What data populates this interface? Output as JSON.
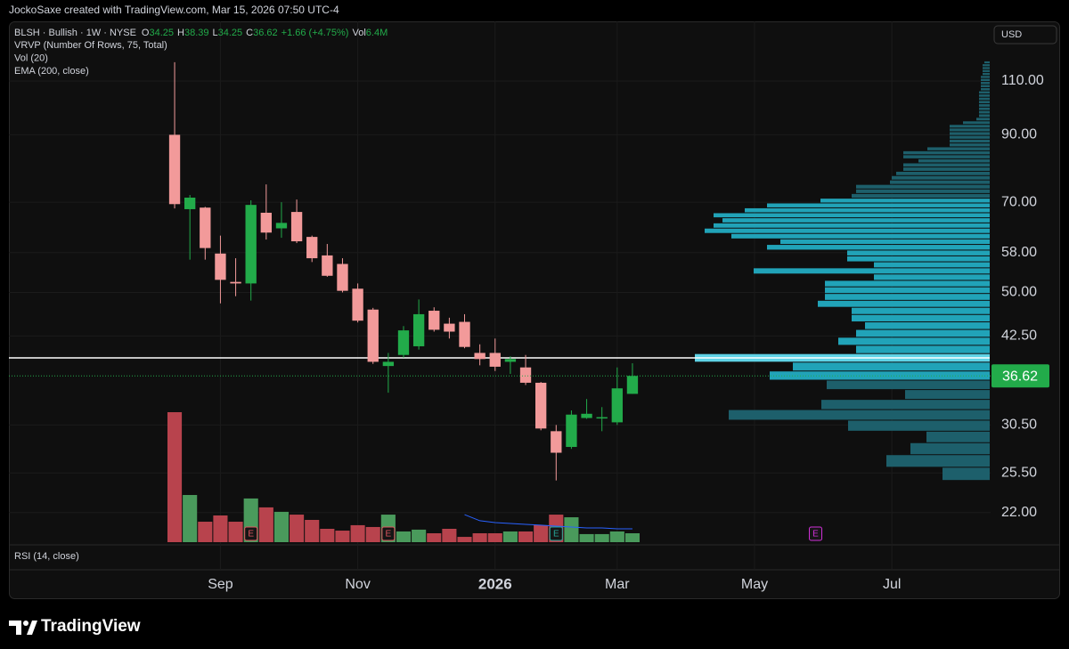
{
  "header": {
    "attribution": "JockoSaxe created with TradingView.com, Mar 15, 2026 07:50 UTC-4"
  },
  "chart_data": {
    "type": "candlestick",
    "symbol_line": "BLSH · Bullish · 1W · NYSE",
    "ohlc_legend": [
      {
        "key": "O",
        "value": 34.25
      },
      {
        "key": "H",
        "value": 38.39
      },
      {
        "key": "L",
        "value": 34.25
      },
      {
        "key": "C",
        "value": 36.62
      },
      {
        "value": "+1.66 (+4.75%)"
      },
      {
        "key": "Vol",
        "value": "6.4M"
      }
    ],
    "indicators": [
      "VRVP (Number Of Rows, 75, Total)",
      "Vol (20)",
      "EMA (200, close)"
    ],
    "rsi_label": "RSI (14, close)",
    "currency": "USD",
    "log_scale": true,
    "grid": true,
    "up_color": "#22ab4a",
    "down_color": "#f29a9a",
    "volume_up_color": "#4a9a5c",
    "volume_down_color": "#b8434d",
    "open": [
      90.0,
      68.2,
      68.6,
      57.8,
      52.0,
      51.7,
      67.3,
      63.5,
      67.5,
      61.5,
      57.4,
      55.6,
      50.7,
      46.9,
      38.0,
      39.6,
      40.9,
      46.7,
      44.5,
      44.8,
      39.9,
      39.9,
      38.6,
      37.8,
      35.7,
      29.8,
      28.1,
      31.3,
      31.3,
      30.8,
      34.25
    ],
    "high": [
      118.0,
      71.9,
      68.8,
      61.8,
      56.8,
      70.5,
      74.8,
      70.0,
      70.7,
      61.8,
      59.9,
      56.8,
      51.7,
      47.2,
      39.9,
      44.1,
      48.7,
      47.3,
      45.5,
      46.1,
      41.2,
      42.1,
      39.4,
      39.6,
      35.8,
      30.5,
      32.2,
      33.6,
      32.6,
      37.8,
      38.39
    ],
    "low": [
      68.4,
      56.5,
      56.5,
      48.0,
      49.3,
      48.5,
      60.9,
      61.3,
      60.1,
      56.0,
      53.0,
      50.0,
      44.7,
      38.3,
      34.4,
      39.2,
      40.4,
      43.2,
      42.1,
      40.6,
      38.1,
      37.3,
      36.9,
      35.4,
      29.9,
      24.8,
      27.9,
      31.2,
      29.8,
      30.5,
      34.25
    ],
    "close": [
      69.5,
      71.2,
      59.0,
      52.4,
      51.7,
      69.3,
      62.5,
      64.8,
      60.5,
      56.8,
      53.2,
      50.3,
      45.0,
      38.6,
      38.6,
      43.4,
      46.1,
      43.5,
      43.2,
      40.8,
      39.0,
      37.9,
      39.0,
      35.7,
      30.1,
      27.5,
      31.7,
      31.8,
      31.4,
      34.96,
      36.62
    ],
    "volume": [
      93.4,
      33.9,
      14.7,
      19.2,
      14.7,
      31.4,
      25.0,
      21.8,
      19.8,
      16.0,
      9.6,
      8.3,
      12.2,
      10.9,
      19.8,
      7.7,
      9.0,
      6.4,
      9.6,
      3.8,
      6.4,
      6.4,
      7.7,
      7.7,
      12.2,
      19.8,
      17.9,
      5.8,
      5.8,
      7.7,
      6.4
    ],
    "volume_ma": [
      null,
      null,
      null,
      null,
      null,
      null,
      null,
      null,
      null,
      null,
      null,
      null,
      null,
      null,
      null,
      null,
      null,
      null,
      null,
      19.8,
      15.4,
      14.1,
      13.4,
      12.8,
      12.2,
      11.5,
      10.9,
      10.2,
      10.2,
      9.6,
      9.6
    ],
    "volume_ma_color": "#2962ff",
    "ylim": [
      19.7,
      137.4
    ],
    "yticks": [
      {
        "value": 110,
        "label": "110.00"
      },
      {
        "value": 90,
        "label": "90.00"
      },
      {
        "value": 70,
        "label": "70.00"
      },
      {
        "value": 58,
        "label": "58.00"
      },
      {
        "value": 50,
        "label": "50.00"
      },
      {
        "value": 42.5,
        "label": "42.50"
      },
      {
        "value": 30.5,
        "label": "30.50"
      },
      {
        "value": 25.5,
        "label": "25.50"
      },
      {
        "value": 22,
        "label": "22.00"
      }
    ],
    "xlim": [
      -10.86,
      53.47
    ],
    "xticks": [
      {
        "value": 3,
        "label": "Sep"
      },
      {
        "value": 12,
        "label": "Nov"
      },
      {
        "value": 21,
        "label": "2026"
      },
      {
        "value": 29,
        "label": "Mar"
      },
      {
        "value": 38,
        "label": "May"
      },
      {
        "value": 47,
        "label": "Jul"
      }
    ],
    "last_price": 36.62,
    "last_price_color": "#22ab4a",
    "events": [
      {
        "x": 5,
        "label": "E",
        "color": "#e05560"
      },
      {
        "x": 14,
        "label": "E",
        "color": "#e05560"
      },
      {
        "x": 25,
        "label": "E",
        "color": "#26a69a"
      },
      {
        "x": 42,
        "label": "E",
        "color": "#d030d8"
      }
    ],
    "profile": {
      "range": [
        24.8,
        118.55
      ],
      "color": "#21a3b8",
      "outer_color": "#1d5f6b",
      "poc_color": "#5fd3e6",
      "value_area_rows": [
        9,
        36
      ],
      "values": [
        53,
        116,
        89,
        71,
        159,
        293,
        189,
        95,
        183,
        247,
        221,
        331,
        150,
        170,
        150,
        140,
        155,
        155,
        193,
        185,
        185,
        185,
        130,
        265,
        130,
        160,
        160,
        250,
        235,
        290,
        320,
        310,
        300,
        310,
        275,
        250,
        190,
        155,
        150,
        150,
        112,
        110,
        105,
        97,
        97,
        80,
        97,
        97,
        70,
        45,
        45,
        45,
        45,
        45,
        45,
        30,
        15,
        12,
        12,
        12,
        12,
        12,
        12,
        12,
        12,
        10,
        10,
        10,
        10,
        10,
        8,
        8,
        8,
        8,
        6
      ]
    }
  },
  "footer": {
    "brand": "TradingView"
  }
}
